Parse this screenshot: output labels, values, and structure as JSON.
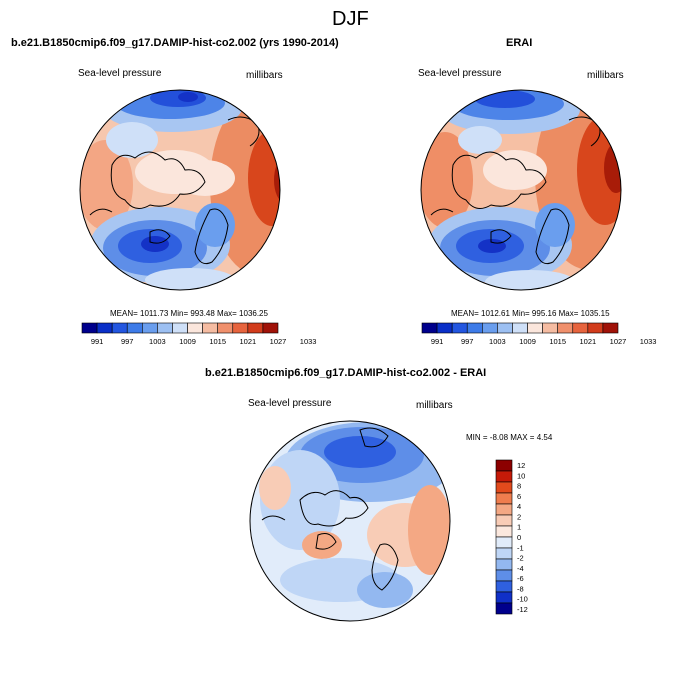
{
  "page_title": "DJF",
  "model_panel": {
    "title": "b.e21.B1850cmip6.f09_g17.DAMIP-hist-co2.002 (yrs 1990-2014)",
    "left_label": "Sea-level pressure",
    "right_label": "millibars",
    "stats": "MEAN= 1011.73  Min= 993.48  Max= 1036.25"
  },
  "obs_panel": {
    "title": "ERAI",
    "left_label": "Sea-level pressure",
    "right_label": "millibars",
    "stats": "MEAN= 1012.61  Min= 995.16  Max= 1035.15"
  },
  "diff_panel": {
    "title": "b.e21.B1850cmip6.f09_g17.DAMIP-hist-co2.002 - ERAI",
    "left_label": "Sea-level pressure",
    "right_label": "millibars",
    "stats": "MIN = -8.08 MAX =   4.54"
  },
  "horizontal_colorbar": {
    "colors": [
      "#00008c",
      "#0a2fc8",
      "#2356e0",
      "#3d7be8",
      "#6a9eee",
      "#9dc0f2",
      "#cfe0f8",
      "#fbe6dc",
      "#f5bca2",
      "#f0906c",
      "#e7643e",
      "#d23c1c",
      "#a01208"
    ],
    "tick_labels": [
      "991",
      "997",
      "1003",
      "1009",
      "1015",
      "1021",
      "1027",
      "1033"
    ]
  },
  "vertical_colorbar": {
    "colors_top_to_bottom": [
      "#8c0000",
      "#c61a08",
      "#e24a1c",
      "#ef7d4e",
      "#f4a884",
      "#f8ccb6",
      "#fbe8de",
      "#e1ecfa",
      "#bfd6f6",
      "#93b8f0",
      "#5e8ee8",
      "#2f60e0",
      "#1030c8",
      "#00008c"
    ],
    "tick_labels_top_to_bottom": [
      "12",
      "10",
      "8",
      "6",
      "4",
      "2",
      "1",
      "0",
      "-1",
      "-2",
      "-4",
      "-6",
      "-8",
      "-10",
      "-12"
    ]
  }
}
